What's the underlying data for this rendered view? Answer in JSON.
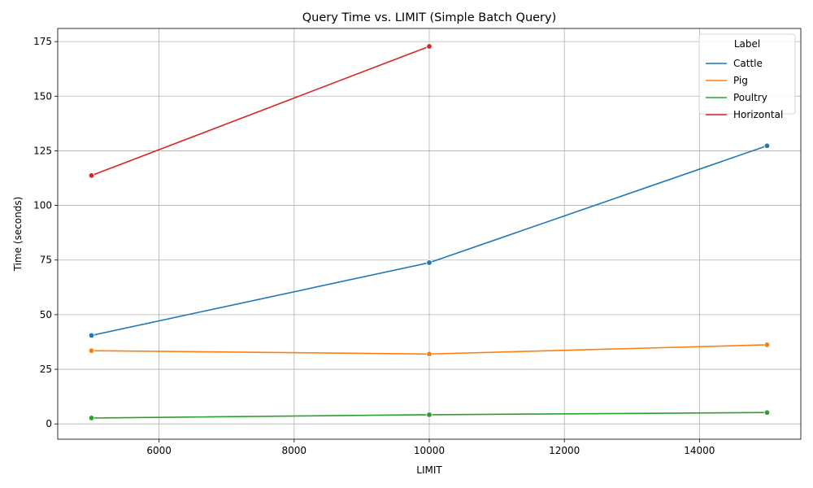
{
  "chart_data": {
    "type": "line",
    "title": "Query Time vs. LIMIT (Simple Batch Query)",
    "xlabel": "LIMIT",
    "ylabel": "Time (seconds)",
    "xlim": [
      4500,
      15500
    ],
    "ylim": [
      -7,
      181
    ],
    "xticks": [
      6000,
      8000,
      10000,
      12000,
      14000
    ],
    "yticks": [
      0,
      25,
      50,
      75,
      100,
      125,
      150,
      175
    ],
    "grid": true,
    "legend": {
      "title": "Label",
      "placement": "top-right"
    },
    "series": [
      {
        "name": "Cattle",
        "color": "#1f77b4",
        "x": [
          5000,
          10000,
          15000
        ],
        "y": [
          40.5,
          73.8,
          127.3
        ]
      },
      {
        "name": "Pig",
        "color": "#ff7f0e",
        "x": [
          5000,
          10000,
          15000
        ],
        "y": [
          33.5,
          32.0,
          36.2
        ]
      },
      {
        "name": "Poultry",
        "color": "#2ca02c",
        "x": [
          5000,
          10000,
          15000
        ],
        "y": [
          2.7,
          4.2,
          5.2
        ]
      },
      {
        "name": "Horizontal",
        "color": "#d62728",
        "x": [
          5000,
          10000
        ],
        "y": [
          113.7,
          172.8
        ]
      }
    ]
  }
}
